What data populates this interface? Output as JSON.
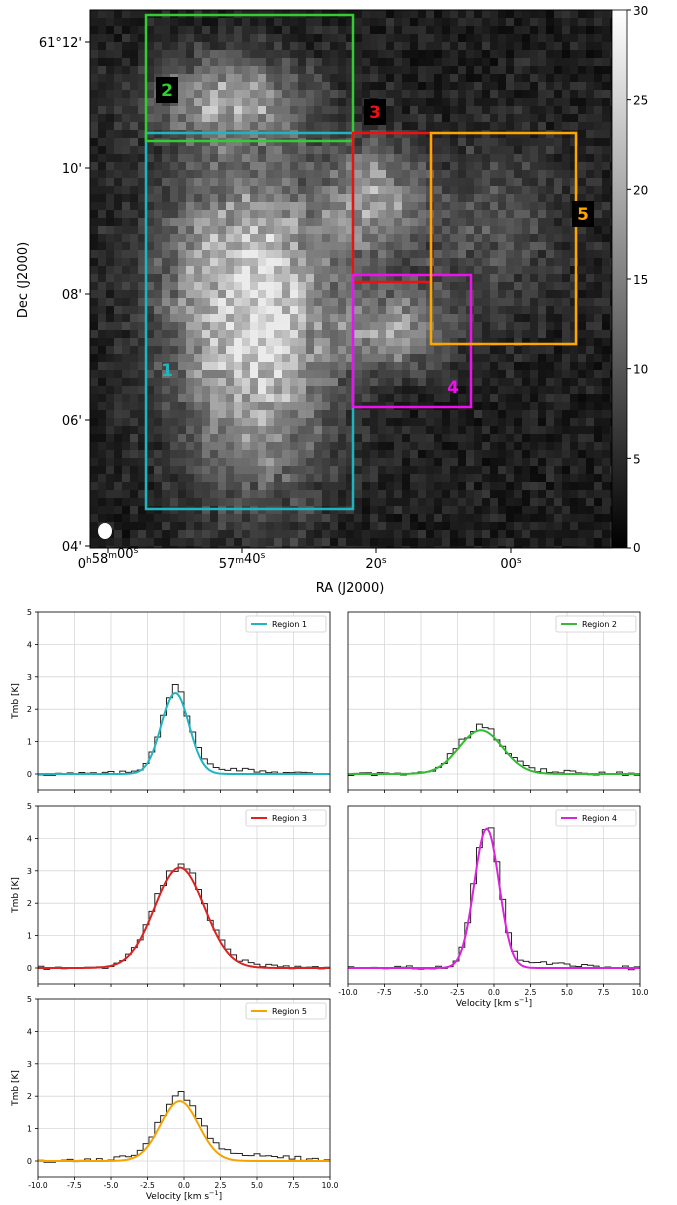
{
  "map": {
    "ylabel": "Dec (J2000)",
    "xlabel": "RA (J2000)",
    "dec_ticks": [
      {
        "sup": "61°12'",
        "text": "61°12'"
      },
      {
        "text": "10'"
      },
      {
        "text": "08'"
      },
      {
        "text": "06'"
      },
      {
        "text": "04'"
      }
    ],
    "ra_ticks": [
      {
        "h": "0",
        "hsup": "h",
        "m": "58",
        "msup": "m",
        "s": "00",
        "ssup": "s"
      },
      {
        "m": "57",
        "msup": "m",
        "s": "40",
        "ssup": "s"
      },
      {
        "s": "20",
        "ssup": "s"
      },
      {
        "s": "00",
        "ssup": "s"
      }
    ],
    "colorbar": {
      "ticks": [
        "0",
        "5",
        "10",
        "15",
        "20",
        "25",
        "30"
      ],
      "colormap": "gray"
    },
    "regions": [
      {
        "label": "1",
        "color": "#1fb5c0"
      },
      {
        "label": "2",
        "color": "#33cc33"
      },
      {
        "label": "3",
        "color": "#ee1111"
      },
      {
        "label": "4",
        "color": "#ee11ee"
      },
      {
        "label": "5",
        "color": "#ffa500"
      }
    ],
    "beam": "white ellipse, bottom-left"
  },
  "chart_data": [
    {
      "type": "line",
      "name": "Region 1",
      "color": "#1fb5c0",
      "ylabel": "Tmb [K]",
      "xlabel": "",
      "xlim": [
        -10,
        10
      ],
      "ylim": [
        0,
        5
      ],
      "x_ticks": [
        "-10.0",
        "-7.5",
        "-5.0",
        "-2.5",
        "0.0",
        "2.5",
        "5.0",
        "7.5",
        "10.0"
      ],
      "y_ticks": [
        "0",
        "1",
        "2",
        "3",
        "4",
        "5"
      ],
      "show_x_ticklabels": false,
      "fit": {
        "amp": 2.5,
        "center": -0.6,
        "sigma": 0.95
      },
      "observed": {
        "wing_amp": 0.18,
        "wing_width": 3.2
      },
      "grid": true,
      "legend": "top-right"
    },
    {
      "type": "line",
      "name": "Region 2",
      "color": "#33bb33",
      "ylabel": "",
      "xlabel": "",
      "xlim": [
        -10,
        10
      ],
      "ylim": [
        0,
        5
      ],
      "x_ticks": [
        "-10.0",
        "-7.5",
        "-5.0",
        "-2.5",
        "0.0",
        "2.5",
        "5.0",
        "7.5",
        "10.0"
      ],
      "y_ticks": [],
      "show_x_ticklabels": false,
      "fit": {
        "amp": 1.35,
        "center": -0.9,
        "sigma": 1.5
      },
      "observed": {
        "wing_amp": 0.1,
        "wing_width": 3.5
      },
      "grid": true,
      "legend": "top-right"
    },
    {
      "type": "line",
      "name": "Region 3",
      "color": "#dd2222",
      "ylabel": "Tmb [K]",
      "xlabel": "",
      "xlim": [
        -10,
        10
      ],
      "ylim": [
        0,
        5
      ],
      "x_ticks": [
        "-10.0",
        "-7.5",
        "-5.0",
        "-2.5",
        "0.0",
        "2.5",
        "5.0",
        "7.5",
        "10.0"
      ],
      "y_ticks": [
        "0",
        "1",
        "2",
        "3",
        "4",
        "5"
      ],
      "show_x_ticklabels": false,
      "fit": {
        "amp": 3.1,
        "center": -0.3,
        "sigma": 1.7
      },
      "observed": {
        "wing_amp": 0.12,
        "wing_width": 3.5
      },
      "grid": true,
      "legend": "top-right"
    },
    {
      "type": "line",
      "name": "Region 4",
      "color": "#dd22dd",
      "ylabel": "",
      "xlabel": "Velocity [km s",
      "xlabel_sup": "−1",
      "xlabel_end": "]",
      "xlim": [
        -10,
        10
      ],
      "ylim": [
        0,
        5
      ],
      "x_ticks": [
        "-10.0",
        "-7.5",
        "-5.0",
        "-2.5",
        "0.0",
        "2.5",
        "5.0",
        "7.5",
        "10.0"
      ],
      "y_ticks": [],
      "show_x_ticklabels": true,
      "fit": {
        "amp": 4.3,
        "center": -0.5,
        "sigma": 0.85
      },
      "observed": {
        "wing_amp": 0.18,
        "wing_width": 2.8
      },
      "grid": true,
      "legend": "top-right"
    },
    {
      "type": "line",
      "name": "Region 5",
      "color": "#f4a300",
      "ylabel": "Tmb [K]",
      "xlabel": "Velocity [km s",
      "xlabel_sup": "−1",
      "xlabel_end": "]",
      "xlim": [
        -10,
        10
      ],
      "ylim": [
        0,
        5
      ],
      "x_ticks": [
        "-10.0",
        "-7.5",
        "-5.0",
        "-2.5",
        "0.0",
        "2.5",
        "5.0",
        "7.5",
        "10.0"
      ],
      "y_ticks": [
        "0",
        "1",
        "2",
        "3",
        "4",
        "5"
      ],
      "show_x_ticklabels": true,
      "fit": {
        "amp": 1.85,
        "center": -0.3,
        "sigma": 1.3
      },
      "observed": {
        "wing_amp": 0.25,
        "wing_width": 4.0
      },
      "grid": true,
      "legend": "top-right"
    }
  ]
}
